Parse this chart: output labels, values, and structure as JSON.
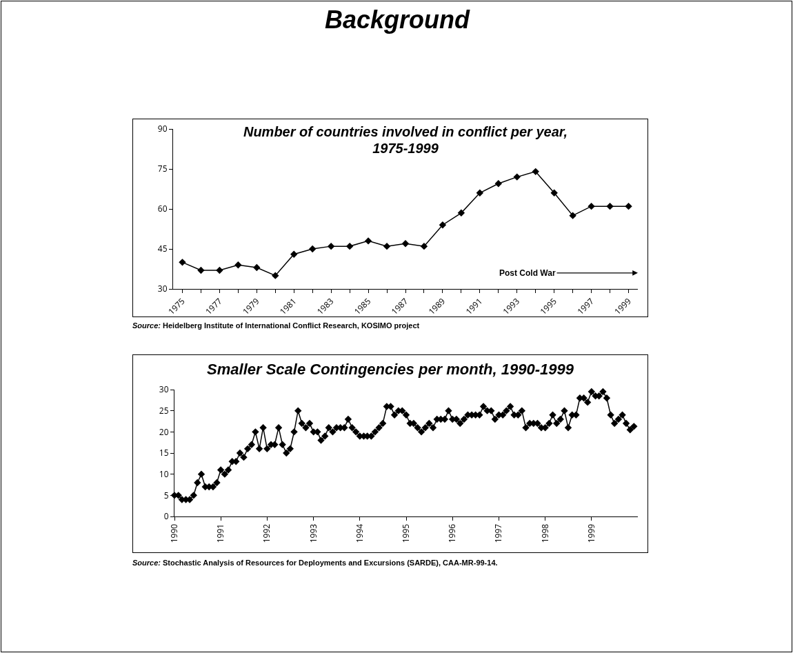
{
  "chart_data": [
    {
      "type": "other",
      "title": "Background"
    },
    {
      "type": "line",
      "title": "Number of countries involved in conflict per year, 1975-1999",
      "marker": "diamond",
      "x": [
        1975,
        1976,
        1977,
        1978,
        1979,
        1980,
        1981,
        1982,
        1983,
        1984,
        1985,
        1986,
        1987,
        1988,
        1989,
        1990,
        1991,
        1992,
        1993,
        1994,
        1995,
        1996,
        1997,
        1998,
        1999
      ],
      "series": [
        {
          "color": "#000000",
          "values": [
            40,
            37,
            37,
            39,
            38,
            35,
            43,
            45,
            46,
            46,
            48,
            46,
            47,
            46,
            54,
            58.5,
            66,
            69.5,
            72,
            74,
            66,
            57.5,
            61,
            61,
            61
          ]
        }
      ],
      "xlim": [
        1974.5,
        1999.5
      ],
      "xticks": [
        {
          "value": 1975,
          "label": "1975"
        },
        {
          "value": 1976,
          "label": null
        },
        {
          "value": 1977,
          "label": "1977"
        },
        {
          "value": 1978,
          "label": null
        },
        {
          "value": 1979,
          "label": "1979"
        },
        {
          "value": 1980,
          "label": null
        },
        {
          "value": 1981,
          "label": "1981"
        },
        {
          "value": 1982,
          "label": null
        },
        {
          "value": 1983,
          "label": "1983"
        },
        {
          "value": 1984,
          "label": null
        },
        {
          "value": 1985,
          "label": "1985"
        },
        {
          "value": 1986,
          "label": null
        },
        {
          "value": 1987,
          "label": "1987"
        },
        {
          "value": 1988,
          "label": null
        },
        {
          "value": 1989,
          "label": "1989"
        },
        {
          "value": 1990,
          "label": null
        },
        {
          "value": 1991,
          "label": "1991"
        },
        {
          "value": 1992,
          "label": null
        },
        {
          "value": 1993,
          "label": "1993"
        },
        {
          "value": 1994,
          "label": null
        },
        {
          "value": 1995,
          "label": "1995"
        },
        {
          "value": 1996,
          "label": null
        },
        {
          "value": 1997,
          "label": "1997"
        },
        {
          "value": 1998,
          "label": null
        },
        {
          "value": 1999,
          "label": "1999"
        }
      ],
      "ylim": [
        30,
        90
      ],
      "yticks": [
        30,
        45,
        60,
        75,
        90
      ],
      "annotations": [
        "Post Cold War",
        "Source: Heidelberg Institute of International Conflict Research, KOSIMO project"
      ]
    },
    {
      "type": "line",
      "title": "Smaller Scale Contingencies per month, 1990-1999",
      "marker": "diamond",
      "x": [
        "1990-01",
        "1990-02",
        "1990-03",
        "1990-04",
        "1990-05",
        "1990-06",
        "1990-07",
        "1990-08",
        "1990-09",
        "1990-10",
        "1990-11",
        "1990-12",
        "1991-01",
        "1991-02",
        "1991-03",
        "1991-04",
        "1991-05",
        "1991-06",
        "1991-07",
        "1991-08",
        "1991-09",
        "1991-10",
        "1991-11",
        "1991-12",
        "1992-01",
        "1992-02",
        "1992-03",
        "1992-04",
        "1992-05",
        "1992-06",
        "1992-07",
        "1992-08",
        "1992-09",
        "1992-10",
        "1992-11",
        "1992-12",
        "1993-01",
        "1993-02",
        "1993-03",
        "1993-04",
        "1993-05",
        "1993-06",
        "1993-07",
        "1993-08",
        "1993-09",
        "1993-10",
        "1993-11",
        "1993-12",
        "1994-01",
        "1994-02",
        "1994-03",
        "1994-04",
        "1994-05",
        "1994-06",
        "1994-07",
        "1994-08",
        "1994-09",
        "1994-10",
        "1994-11",
        "1994-12",
        "1995-01",
        "1995-02",
        "1995-03",
        "1995-04",
        "1995-05",
        "1995-06",
        "1995-07",
        "1995-08",
        "1995-09",
        "1995-10",
        "1995-11",
        "1995-12",
        "1996-01",
        "1996-02",
        "1996-03",
        "1996-04",
        "1996-05",
        "1996-06",
        "1996-07",
        "1996-08",
        "1996-09",
        "1996-10",
        "1996-11",
        "1996-12",
        "1997-01",
        "1997-02",
        "1997-03",
        "1997-04",
        "1997-05",
        "1997-06",
        "1997-07",
        "1997-08",
        "1997-09",
        "1997-10",
        "1997-11",
        "1997-12",
        "1998-01",
        "1998-02",
        "1998-03",
        "1998-04",
        "1998-05",
        "1998-06",
        "1998-07",
        "1998-08",
        "1998-09",
        "1998-10",
        "1998-11",
        "1998-12",
        "1999-01",
        "1999-02",
        "1999-03",
        "1999-04",
        "1999-05",
        "1999-06",
        "1999-07",
        "1999-08",
        "1999-09",
        "1999-10",
        "1999-11",
        "1999-12"
      ],
      "series": [
        {
          "color": "#000000",
          "values": [
            5,
            5,
            4,
            4,
            4,
            5,
            8,
            10,
            7,
            7,
            7,
            8,
            11,
            10,
            11,
            13,
            13,
            15,
            14,
            16,
            17,
            20,
            16,
            21,
            16,
            17,
            17,
            21,
            17,
            15,
            16,
            20,
            25,
            22,
            21,
            22,
            20,
            20,
            18,
            19,
            21,
            20,
            21,
            21,
            21,
            23,
            21,
            20,
            19,
            19,
            19,
            19,
            20,
            21,
            22,
            26,
            26,
            24,
            25,
            25,
            24,
            22,
            22,
            21,
            20,
            21,
            22,
            21,
            23,
            23,
            23,
            25,
            23,
            23,
            22,
            23,
            24,
            24,
            24,
            24,
            26,
            25,
            25,
            23,
            24,
            24,
            25,
            26,
            24,
            24,
            25,
            21,
            22,
            22,
            22,
            21,
            21,
            22,
            24,
            22,
            23,
            25,
            21,
            24,
            24,
            28,
            28,
            27,
            29.5,
            28.5,
            28.5,
            29.5,
            28,
            24,
            22,
            23,
            24,
            22,
            20.5,
            21.3
          ]
        }
      ],
      "xlim": [
        "1990-01",
        "2000-01"
      ],
      "xticks": [
        {
          "value": "1990-01",
          "label": "1990"
        },
        {
          "value": "1991-01",
          "label": "1991"
        },
        {
          "value": "1992-01",
          "label": "1992"
        },
        {
          "value": "1993-01",
          "label": "1993"
        },
        {
          "value": "1994-01",
          "label": "1994"
        },
        {
          "value": "1995-01",
          "label": "1995"
        },
        {
          "value": "1996-01",
          "label": "1996"
        },
        {
          "value": "1997-01",
          "label": "1997"
        },
        {
          "value": "1998-01",
          "label": "1998"
        },
        {
          "value": "1999-01",
          "label": "1999"
        }
      ],
      "ylim": [
        0,
        30
      ],
      "yticks": [
        0,
        5,
        10,
        15,
        20,
        25,
        30
      ],
      "annotations": [
        "Source: Stochastic Analysis of Resources for Deployments and Excursions (SARDE), CAA-MR-99-14."
      ]
    }
  ]
}
